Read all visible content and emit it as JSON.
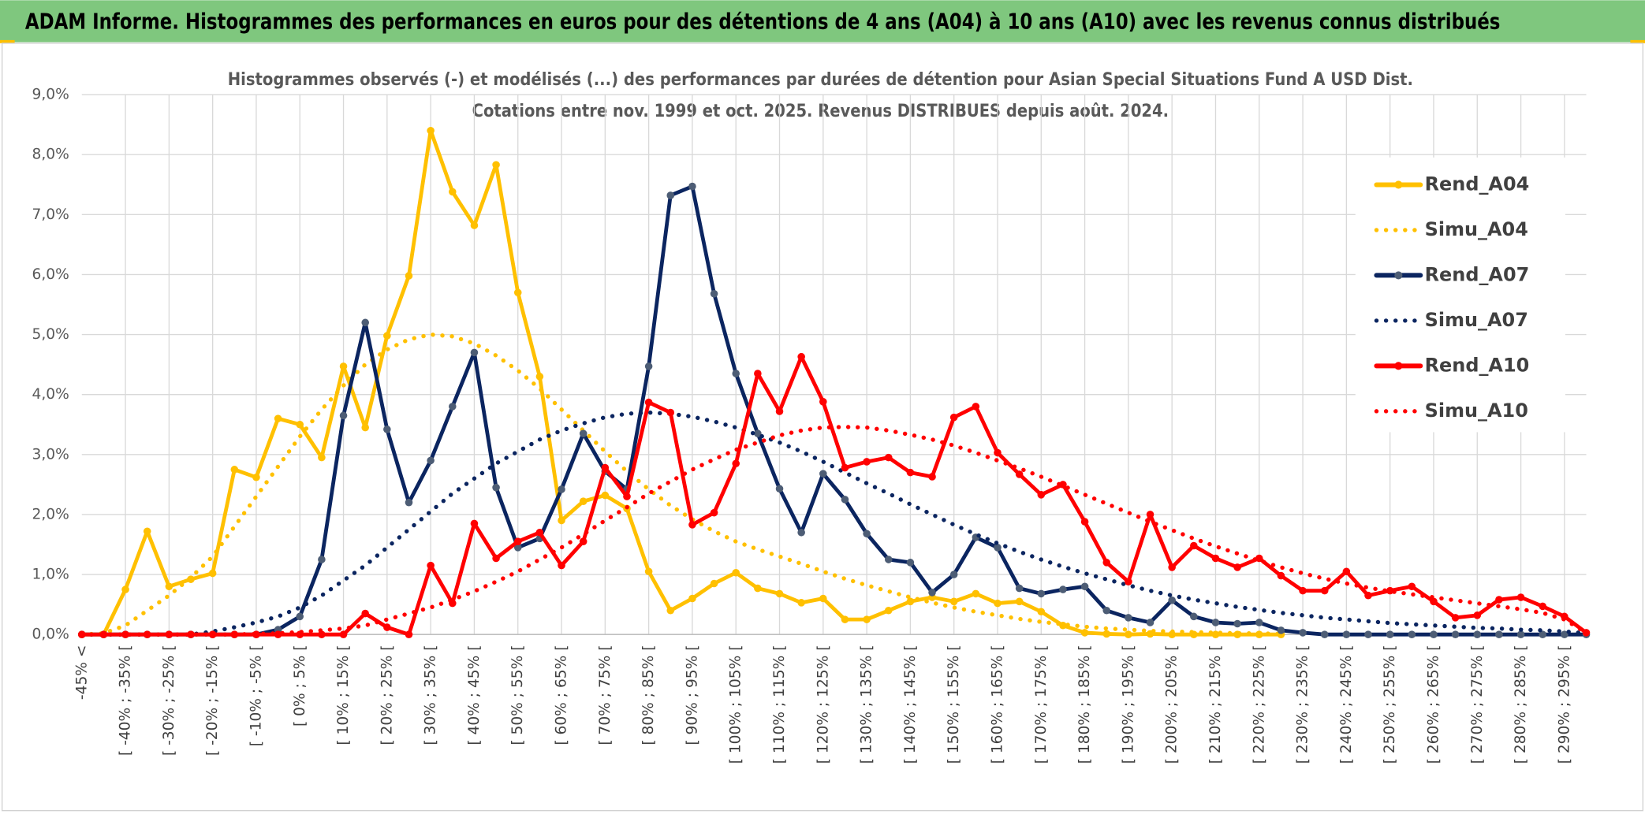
{
  "chart_data": {
    "type": "line",
    "title": "ADAM Informe. Histogrammes des performances en euros pour des détentions de 4 ans (A04) à 10 ans (A10) avec les revenus connus distribués",
    "subtitle": [
      "Histogrammes observés (-) et modélisés (...) des performances par durées de détention pour Asian Special Situations Fund A USD Dist.",
      "Cotations entre nov. 1999 et oct. 2025. Revenus DISTRIBUES depuis août. 2024."
    ],
    "categories": [
      "-45% <",
      null,
      "[ -40% ; -35% [",
      null,
      "[ -30% ; -25% [",
      null,
      "[ -20% ; -15% [",
      null,
      "[ -10% ; -5% [",
      null,
      "[ 0% ; 5% [",
      null,
      "[ 10% ; 15% [",
      null,
      "[ 20% ; 25% [",
      null,
      "[ 30% ; 35% [",
      null,
      "[ 40% ; 45% [",
      null,
      "[ 50% ; 55% [",
      null,
      "[ 60% ; 65% [",
      null,
      "[ 70% ; 75% [",
      null,
      "[ 80% ; 85% [",
      null,
      "[ 90% ; 95% [",
      null,
      "[ 100% ; 105% [",
      null,
      "[ 110% ; 115% [",
      null,
      "[ 120% ; 125% [",
      null,
      "[ 130% ; 135% [",
      null,
      "[ 140% ; 145% [",
      null,
      "[ 150% ; 155% [",
      null,
      "[ 160% ; 165% [",
      null,
      "[ 170% ; 175% [",
      null,
      "[ 180% ; 185% [",
      null,
      "[ 190% ; 195% [",
      null,
      "[ 200% ; 205% [",
      null,
      "[ 210% ; 215% [",
      null,
      "[ 220% ; 225% [",
      null,
      "[ 230% ; 235% [",
      null,
      "[ 240% ; 245% [",
      null,
      "[ 250% ; 255% [",
      null,
      "[ 260% ; 265% [",
      null,
      "[ 270% ; 275% [",
      null,
      "[ 280% ; 285% [",
      null,
      "[ 290% ; 295% [",
      null
    ],
    "series": [
      {
        "name": "Rend_A04",
        "color": "#ffc000",
        "style": "solid",
        "markers": true,
        "marker_color": "#ffc000",
        "values": [
          0,
          0,
          0.75,
          1.72,
          0.8,
          0.92,
          1.02,
          2.75,
          2.62,
          3.6,
          3.5,
          2.95,
          4.47,
          3.45,
          4.98,
          5.98,
          8.4,
          7.38,
          6.82,
          7.83,
          5.7,
          4.3,
          1.9,
          2.22,
          2.32,
          2.1,
          1.05,
          0.4,
          0.6,
          0.85,
          1.03,
          0.77,
          0.68,
          0.53,
          0.6,
          0.25,
          0.25,
          0.4,
          0.55,
          0.62,
          0.55,
          0.68,
          0.52,
          0.55,
          0.38,
          0.15,
          0.03,
          0.01,
          0,
          0.01,
          0,
          0,
          0,
          0,
          0,
          0,
          null,
          null,
          null,
          null,
          null,
          null,
          null,
          null,
          null,
          null,
          null,
          null,
          null,
          null
        ]
      },
      {
        "name": "Simu_A04",
        "color": "#ffc000",
        "style": "dotted",
        "markers": false,
        "values": [
          0,
          0.02,
          0.15,
          0.4,
          0.65,
          0.95,
          1.3,
          1.8,
          2.3,
          2.8,
          3.3,
          3.75,
          4.15,
          4.5,
          4.75,
          4.92,
          5.0,
          4.97,
          4.85,
          4.65,
          4.4,
          4.1,
          3.75,
          3.4,
          3.05,
          2.72,
          2.42,
          2.15,
          1.92,
          1.72,
          1.55,
          1.42,
          1.3,
          1.18,
          1.05,
          0.93,
          0.82,
          0.72,
          0.62,
          0.53,
          0.45,
          0.38,
          0.32,
          0.26,
          0.21,
          0.17,
          0.13,
          0.1,
          0.08,
          0.06,
          0.05,
          0.04,
          0.03,
          0.02,
          0.02,
          0.01,
          null,
          null,
          null,
          null,
          null,
          null,
          null,
          null,
          null,
          null,
          null,
          null,
          null,
          null
        ]
      },
      {
        "name": "Rend_A07",
        "color": "#0b2560",
        "style": "solid",
        "markers": true,
        "marker_color": "#4d5d75",
        "values": [
          0,
          0,
          0,
          0,
          0,
          0,
          0,
          0,
          0,
          0.08,
          0.3,
          1.25,
          3.65,
          5.2,
          3.42,
          2.2,
          2.9,
          3.8,
          4.7,
          2.45,
          1.45,
          1.6,
          2.42,
          3.35,
          2.72,
          2.42,
          4.47,
          7.32,
          7.47,
          5.68,
          4.35,
          3.35,
          2.43,
          1.7,
          2.68,
          2.25,
          1.68,
          1.25,
          1.2,
          0.7,
          1.0,
          1.62,
          1.45,
          0.77,
          0.68,
          0.75,
          0.8,
          0.4,
          0.28,
          0.2,
          0.57,
          0.3,
          0.2,
          0.18,
          0.2,
          0.07,
          0.03,
          0,
          0,
          0,
          0,
          0,
          0,
          0,
          0,
          0,
          0,
          0,
          0,
          0
        ]
      },
      {
        "name": "Simu_A07",
        "color": "#0b2560",
        "style": "dotted",
        "markers": false,
        "values": [
          0,
          0,
          0,
          0,
          0,
          0,
          0.05,
          0.12,
          0.2,
          0.3,
          0.45,
          0.65,
          0.9,
          1.15,
          1.45,
          1.75,
          2.05,
          2.35,
          2.6,
          2.85,
          3.05,
          3.25,
          3.4,
          3.52,
          3.62,
          3.68,
          3.7,
          3.68,
          3.63,
          3.55,
          3.45,
          3.33,
          3.2,
          3.05,
          2.88,
          2.7,
          2.52,
          2.35,
          2.17,
          2.0,
          1.83,
          1.67,
          1.52,
          1.38,
          1.25,
          1.13,
          1.02,
          0.92,
          0.82,
          0.73,
          0.65,
          0.58,
          0.52,
          0.46,
          0.41,
          0.36,
          0.32,
          0.28,
          0.25,
          0.22,
          0.19,
          0.17,
          0.15,
          0.13,
          0.11,
          0.1,
          0.08,
          0.07,
          0.05,
          0.02
        ]
      },
      {
        "name": "Rend_A10",
        "color": "#ff0000",
        "style": "solid",
        "markers": true,
        "marker_color": "#ff0000",
        "values": [
          0,
          0,
          0,
          0,
          0,
          0,
          0,
          0,
          0,
          0,
          0,
          0,
          0,
          0.35,
          0.12,
          0,
          1.15,
          0.52,
          1.85,
          1.27,
          1.55,
          1.7,
          1.15,
          1.55,
          2.78,
          2.3,
          3.87,
          3.7,
          1.83,
          2.03,
          2.85,
          4.35,
          3.72,
          4.63,
          3.88,
          2.78,
          2.88,
          2.95,
          2.7,
          2.63,
          3.62,
          3.8,
          3.03,
          2.67,
          2.33,
          2.5,
          1.88,
          1.2,
          0.88,
          2.0,
          1.12,
          1.48,
          1.27,
          1.12,
          1.27,
          0.98,
          0.73,
          0.73,
          1.05,
          0.65,
          0.73,
          0.8,
          0.55,
          0.28,
          0.32,
          0.58,
          0.62,
          0.47,
          0.3,
          0.03
        ]
      },
      {
        "name": "Simu_A10",
        "color": "#ff0000",
        "style": "dotted",
        "markers": false,
        "values": [
          0,
          0,
          0,
          0,
          0,
          0,
          0,
          0,
          0.01,
          0.02,
          0.04,
          0.07,
          0.1,
          0.15,
          0.25,
          0.35,
          0.45,
          0.58,
          0.72,
          0.88,
          1.05,
          1.25,
          1.45,
          1.67,
          1.9,
          2.12,
          2.35,
          2.55,
          2.75,
          2.92,
          3.08,
          3.2,
          3.32,
          3.4,
          3.45,
          3.46,
          3.45,
          3.4,
          3.33,
          3.25,
          3.15,
          3.03,
          2.9,
          2.77,
          2.63,
          2.48,
          2.33,
          2.18,
          2.03,
          1.88,
          1.74,
          1.6,
          1.47,
          1.35,
          1.23,
          1.12,
          1.02,
          0.93,
          0.85,
          0.78,
          0.72,
          0.67,
          0.62,
          0.57,
          0.52,
          0.47,
          0.42,
          0.36,
          0.25,
          0.03
        ]
      }
    ],
    "ylim": [
      0,
      9
    ],
    "yticks": [
      {
        "value": 0,
        "label": "0,0%"
      },
      {
        "value": 1,
        "label": "1,0%"
      },
      {
        "value": 2,
        "label": "2,0%"
      },
      {
        "value": 3,
        "label": "3,0%"
      },
      {
        "value": 4,
        "label": "4,0%"
      },
      {
        "value": 5,
        "label": "5,0%"
      },
      {
        "value": 6,
        "label": "6,0%"
      },
      {
        "value": 7,
        "label": "7,0%"
      },
      {
        "value": 8,
        "label": "8,0%"
      },
      {
        "value": 9,
        "label": "9,0%"
      }
    ],
    "grid": true,
    "legend": "right"
  }
}
